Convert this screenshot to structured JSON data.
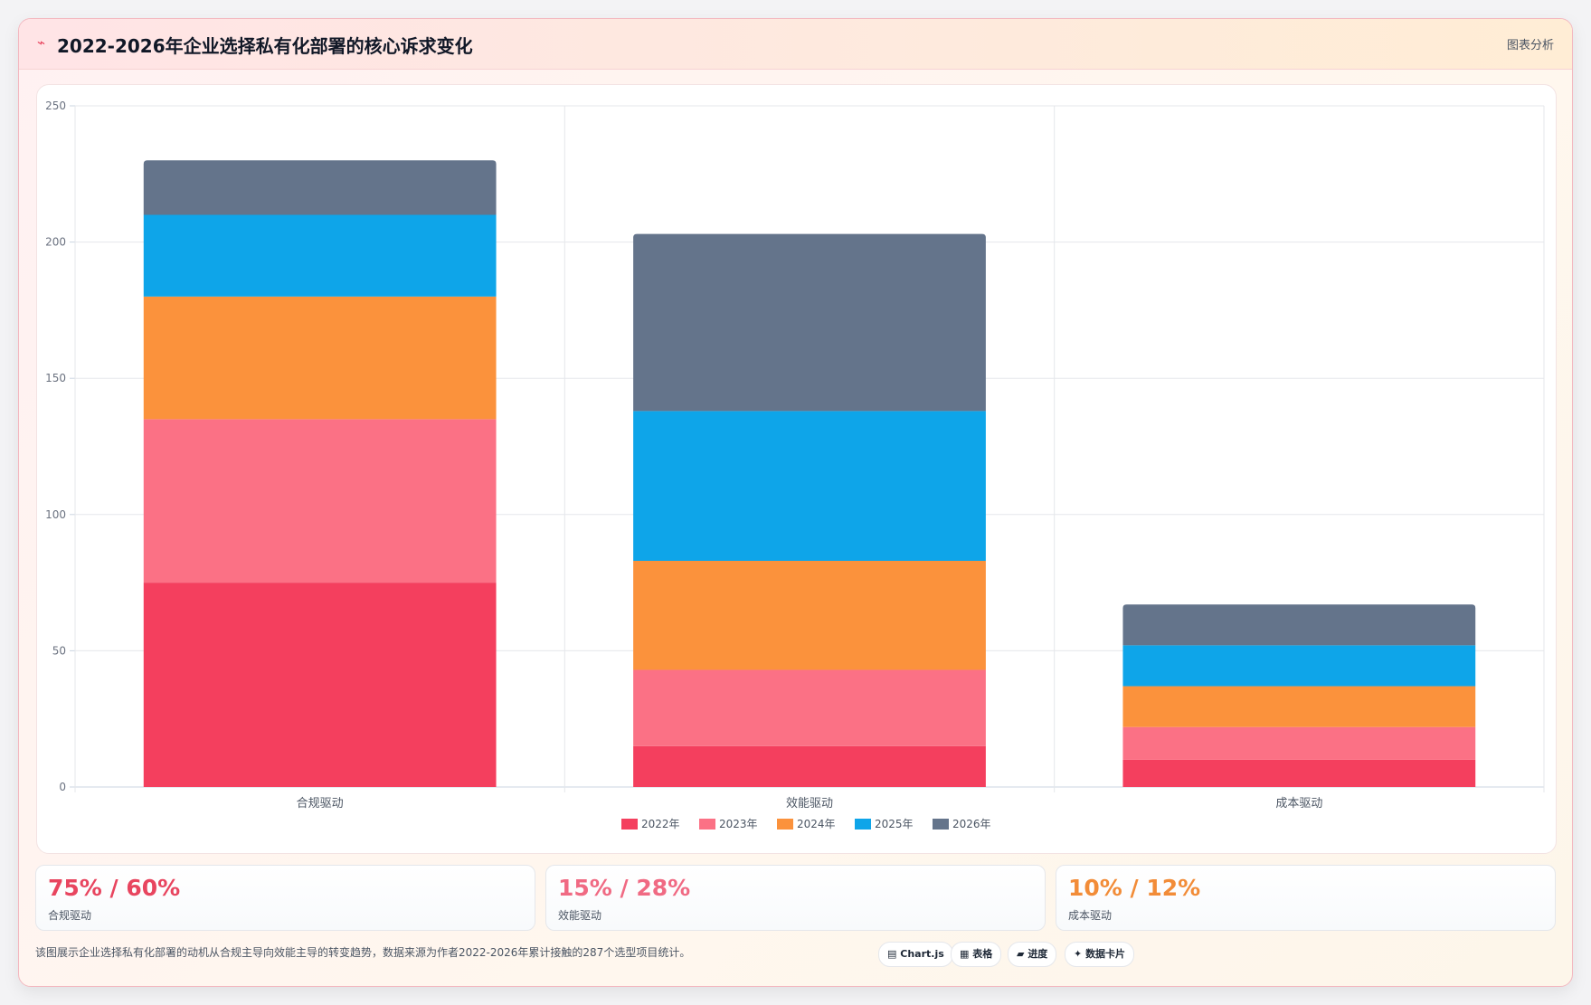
{
  "header": {
    "icon": "chart-line-icon",
    "title": "2022-2026年企业选择私有化部署的核心诉求变化",
    "action_label": "图表分析"
  },
  "chart_data": {
    "type": "bar",
    "stacked": true,
    "categories": [
      "合规驱动",
      "效能驱动",
      "成本驱动"
    ],
    "series": [
      {
        "name": "2022年",
        "color": "#f43f5e",
        "values": [
          75,
          15,
          10
        ]
      },
      {
        "name": "2023年",
        "color": "#fb7185",
        "values": [
          60,
          28,
          12
        ]
      },
      {
        "name": "2024年",
        "color": "#fb923c",
        "values": [
          45,
          40,
          15
        ]
      },
      {
        "name": "2025年",
        "color": "#0ea5e9",
        "values": [
          30,
          55,
          15
        ]
      },
      {
        "name": "2026年",
        "color": "#64748b",
        "values": [
          20,
          65,
          15
        ]
      }
    ],
    "ylim": [
      0,
      250
    ],
    "yticks": [
      0,
      50,
      100,
      150,
      200,
      250
    ],
    "grid": true,
    "legend_position": "bottom",
    "title": "",
    "xlabel": "",
    "ylabel": ""
  },
  "stats": [
    {
      "value": "75% / 60%",
      "label": "合规驱动",
      "color": "#e8455f"
    },
    {
      "value": "15% / 28%",
      "label": "效能驱动",
      "color": "#f06a83"
    },
    {
      "value": "10% / 12%",
      "label": "成本驱动",
      "color": "#f28c38"
    }
  ],
  "footer": {
    "note": "该图展示企业选择私有化部署的动机从合规主导向效能主导的转变趋势，数据来源为作者2022-2026年累计接触的287个选型项目统计。",
    "chips": [
      {
        "icon": "chart-icon",
        "glyph": "▤",
        "label": "Chart.js"
      },
      {
        "icon": "table-icon",
        "glyph": "▦",
        "label": "表格"
      },
      {
        "icon": "progress-icon",
        "glyph": "▰",
        "label": "进度"
      },
      {
        "icon": "card-icon",
        "glyph": "✦",
        "label": "数据卡片"
      }
    ]
  }
}
